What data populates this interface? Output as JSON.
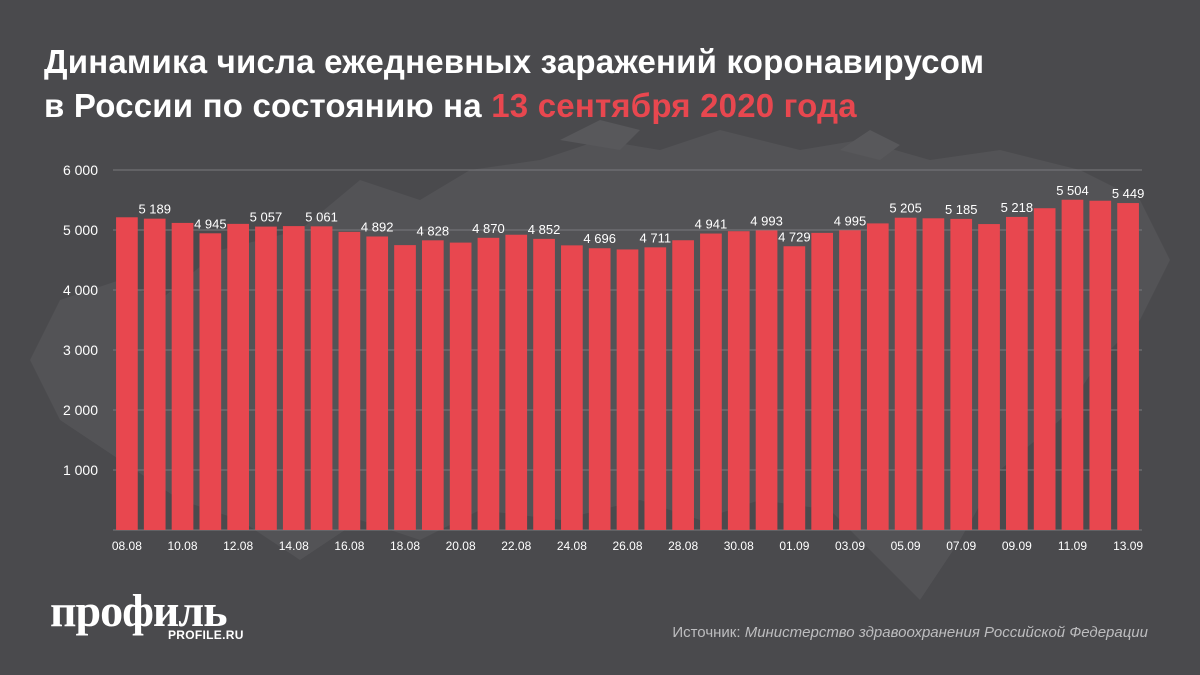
{
  "title": {
    "line1": "Динамика числа ежедневных заражений коронавирусом",
    "line2_prefix": "в России по состоянию на ",
    "line2_accent": "13 сентября 2020 года"
  },
  "colors": {
    "background": "#4a4a4d",
    "bar": "#e8474f",
    "accent": "#e8474f",
    "text": "#ffffff",
    "grid": "#7a7a7d"
  },
  "logo": {
    "name": "профиль",
    "site": "PROFILE.RU"
  },
  "source": {
    "label": "Источник: ",
    "value": "Министерство здравоохранения Российской Федерации"
  },
  "chart_data": {
    "type": "bar",
    "dates": [
      "08.08",
      "09.08",
      "10.08",
      "11.08",
      "12.08",
      "13.08",
      "14.08",
      "15.08",
      "16.08",
      "17.08",
      "18.08",
      "19.08",
      "20.08",
      "21.08",
      "22.08",
      "23.08",
      "24.08",
      "25.08",
      "26.08",
      "27.08",
      "28.08",
      "29.08",
      "30.08",
      "31.08",
      "01.09",
      "02.09",
      "03.09",
      "04.09",
      "05.09",
      "06.09",
      "07.09",
      "08.09",
      "09.09",
      "10.09",
      "11.09",
      "12.09",
      "13.09"
    ],
    "values": [
      5212,
      5189,
      5118,
      4945,
      5102,
      5057,
      5065,
      5061,
      4969,
      4892,
      4748,
      4828,
      4790,
      4870,
      4921,
      4852,
      4744,
      4696,
      4676,
      4711,
      4829,
      4941,
      4980,
      4993,
      4729,
      4952,
      4995,
      5110,
      5205,
      5195,
      5185,
      5099,
      5218,
      5363,
      5504,
      5488,
      5449
    ],
    "labels": [
      "",
      "5 189",
      "",
      "4 945",
      "",
      "5 057",
      "",
      "5 061",
      "",
      "4 892",
      "",
      "4 828",
      "",
      "4 870",
      "",
      "4 852",
      "",
      "4 696",
      "",
      "4 711",
      "",
      "4 941",
      "",
      "4 993",
      "4 729",
      "",
      "4 995",
      "",
      "5 205",
      "",
      "5 185",
      "",
      "5 218",
      "",
      "5 504",
      "",
      "5 449"
    ],
    "xticks": [
      "08.08",
      "10.08",
      "12.08",
      "14.08",
      "16.08",
      "18.08",
      "20.08",
      "22.08",
      "24.08",
      "26.08",
      "28.08",
      "30.08",
      "01.09",
      "03.09",
      "05.09",
      "07.09",
      "09.09",
      "11.09",
      "13.09"
    ],
    "yticks": [
      "1 000",
      "2 000",
      "3 000",
      "4 000",
      "5 000",
      "6 000"
    ],
    "ylim": [
      0,
      6000
    ],
    "grid": true
  }
}
